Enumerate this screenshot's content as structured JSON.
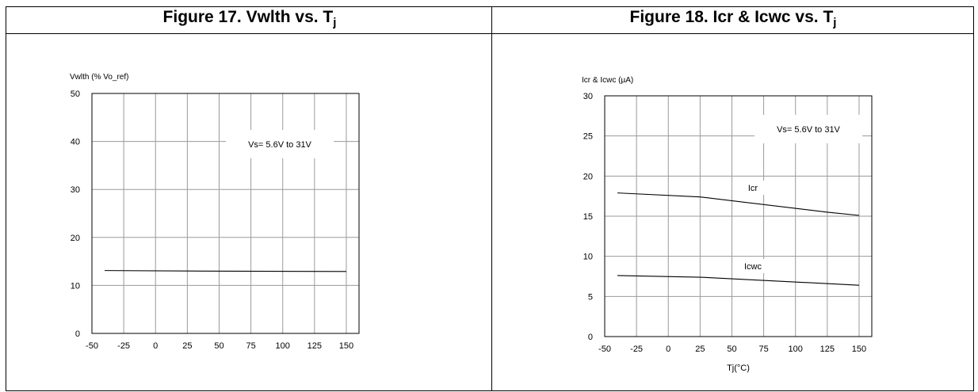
{
  "chart_data": [
    {
      "type": "line",
      "title": "Figure 17. Vwlth vs. T",
      "title_subscript": "j",
      "ylabel": "Vwlth (% Vo_ref)",
      "xlabel": "",
      "x_ticks": [
        "-50",
        "-25",
        "0",
        "25",
        "50",
        "75",
        "100",
        "125",
        "150"
      ],
      "y_ticks": [
        "0",
        "10",
        "20",
        "30",
        "40",
        "50"
      ],
      "xlim": [
        -50,
        160
      ],
      "ylim": [
        0,
        50
      ],
      "grid": true,
      "annotation": "Vs= 5.6V to 31V",
      "series": [
        {
          "x": [
            -40,
            25,
            150
          ],
          "values": [
            13.1,
            13.0,
            12.9
          ]
        }
      ]
    },
    {
      "type": "line",
      "title": "Figure 18. Icr & Icwc vs. T",
      "title_subscript": "j",
      "ylabel": "Icr & Icwc (µA)",
      "xlabel": "Tj(°C)",
      "x_ticks": [
        "-50",
        "-25",
        "0",
        "25",
        "50",
        "75",
        "100",
        "125",
        "150"
      ],
      "y_ticks": [
        "0",
        "5",
        "10",
        "15",
        "20",
        "25",
        "30"
      ],
      "xlim": [
        -50,
        160
      ],
      "ylim": [
        0,
        30
      ],
      "grid": true,
      "annotation": "Vs= 5.6V to 31V",
      "series": [
        {
          "name": "Icr",
          "x": [
            -40,
            25,
            125,
            150
          ],
          "values": [
            17.9,
            17.4,
            15.5,
            15.1
          ]
        },
        {
          "name": "Icwc",
          "x": [
            -40,
            25,
            150
          ],
          "values": [
            7.6,
            7.4,
            6.4
          ]
        }
      ]
    }
  ]
}
